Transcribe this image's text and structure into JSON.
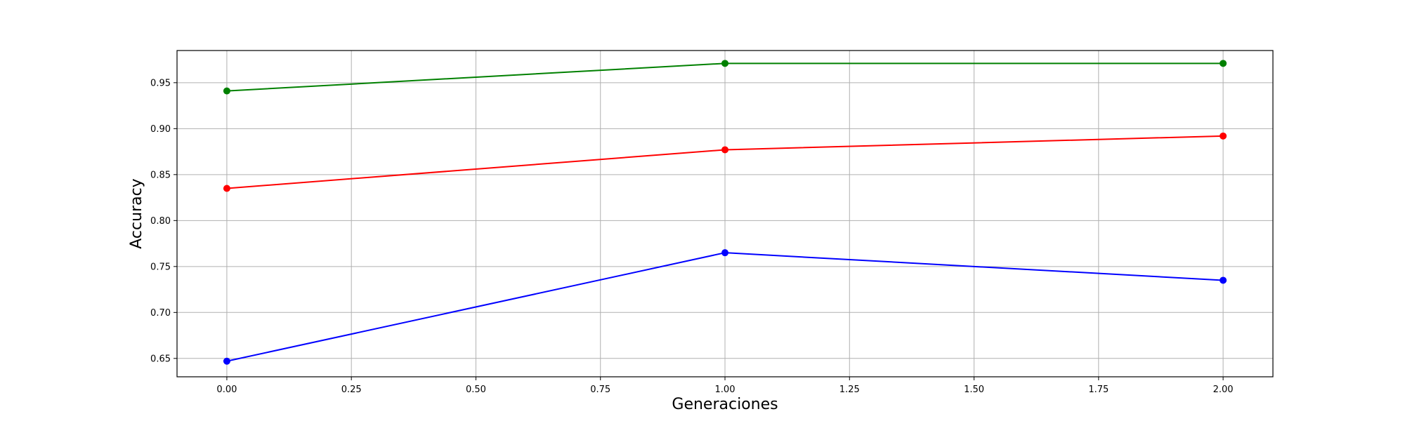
{
  "chart_data": {
    "type": "line",
    "title": "",
    "xlabel": "Generaciones",
    "ylabel": "Accuracy",
    "xlim": [
      -0.1,
      2.1
    ],
    "ylim": [
      0.63,
      0.985
    ],
    "xticks": [
      0.0,
      0.25,
      0.5,
      0.75,
      1.0,
      1.25,
      1.5,
      1.75,
      2.0
    ],
    "xtick_labels": [
      "0.00",
      "0.25",
      "0.50",
      "0.75",
      "1.00",
      "1.25",
      "1.50",
      "1.75",
      "2.00"
    ],
    "yticks": [
      0.65,
      0.7,
      0.75,
      0.8,
      0.85,
      0.9,
      0.95
    ],
    "ytick_labels": [
      "0.65",
      "0.70",
      "0.75",
      "0.80",
      "0.85",
      "0.90",
      "0.95"
    ],
    "grid": true,
    "x": [
      0,
      1,
      2
    ],
    "series": [
      {
        "color": "#008000",
        "values": [
          0.941,
          0.971,
          0.971
        ]
      },
      {
        "color": "#ff0000",
        "values": [
          0.835,
          0.877,
          0.892
        ]
      },
      {
        "color": "#0000ff",
        "values": [
          0.647,
          0.765,
          0.735
        ]
      }
    ]
  }
}
